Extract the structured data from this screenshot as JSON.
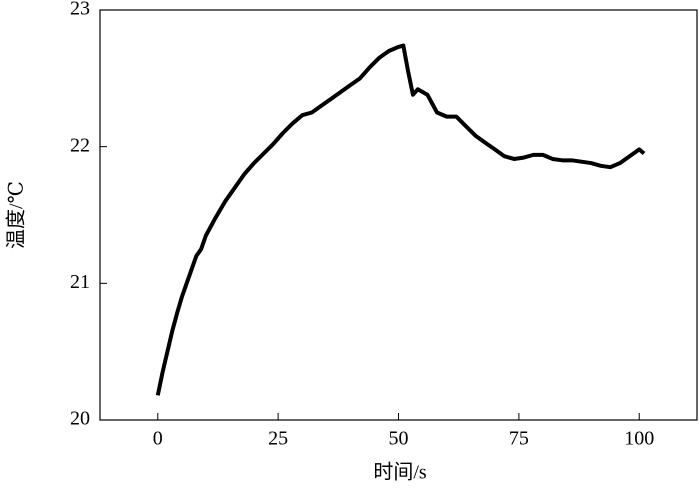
{
  "chart_data": {
    "type": "line",
    "x_label": "时间/s",
    "y_label": "温度/℃",
    "x": [
      0,
      1,
      2,
      3,
      4,
      5,
      6,
      7,
      8,
      9,
      10,
      12,
      14,
      16,
      18,
      20,
      22,
      24,
      26,
      28,
      30,
      32,
      34,
      36,
      38,
      40,
      42,
      44,
      46,
      48,
      50,
      51,
      52,
      53,
      54,
      56,
      58,
      60,
      62,
      64,
      66,
      68,
      70,
      72,
      74,
      76,
      78,
      80,
      82,
      84,
      86,
      88,
      90,
      92,
      94,
      96,
      98,
      100,
      101
    ],
    "values": [
      20.18,
      20.35,
      20.5,
      20.65,
      20.78,
      20.9,
      21.0,
      21.1,
      21.2,
      21.25,
      21.35,
      21.48,
      21.6,
      21.7,
      21.8,
      21.88,
      21.95,
      22.02,
      22.1,
      22.17,
      22.23,
      22.25,
      22.3,
      22.35,
      22.4,
      22.45,
      22.5,
      22.58,
      22.65,
      22.7,
      22.73,
      22.74,
      22.55,
      22.38,
      22.42,
      22.38,
      22.25,
      22.22,
      22.22,
      22.15,
      22.08,
      22.03,
      21.98,
      21.93,
      21.91,
      21.92,
      21.94,
      21.94,
      21.91,
      21.9,
      21.9,
      21.89,
      21.88,
      21.86,
      21.85,
      21.88,
      21.93,
      21.98,
      21.95
    ],
    "color": "#000000",
    "xlim": [
      -12,
      112
    ],
    "xticks": [
      0,
      25,
      50,
      75,
      100
    ],
    "ylim": [
      20,
      23
    ],
    "yticks": [
      20,
      21,
      22,
      23
    ]
  }
}
